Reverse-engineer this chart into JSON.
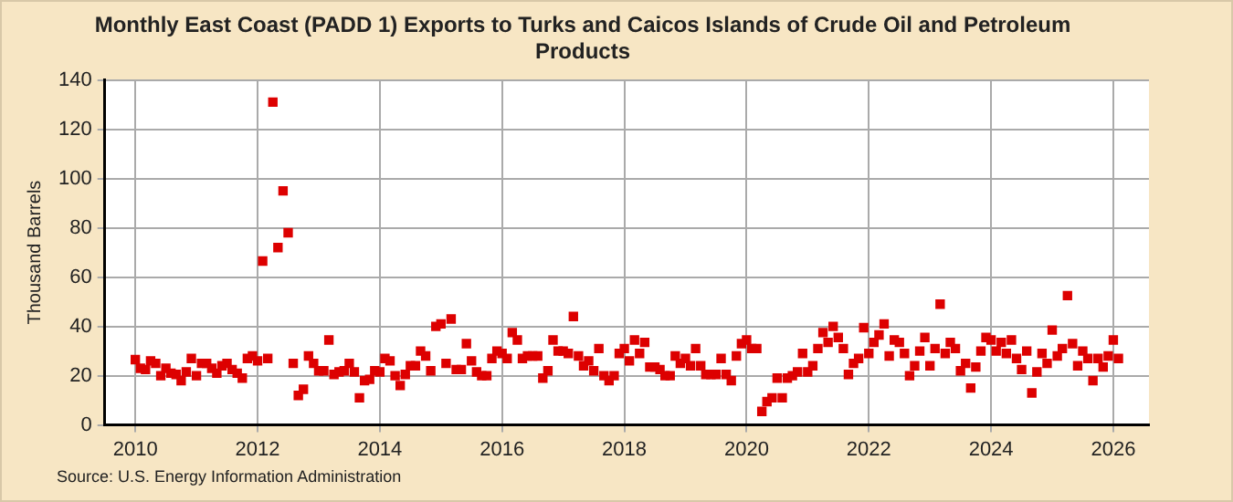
{
  "chart_data": {
    "type": "scatter",
    "title": "Monthly East Coast (PADD 1) Exports to Turks and Caicos Islands of Crude Oil and Petroleum Products",
    "ylabel": "Thousand Barrels",
    "annotations": [
      "Source: U.S. Energy Information Administration"
    ],
    "x": [
      "2010-01",
      "2010-02",
      "2010-03",
      "2010-04",
      "2010-05",
      "2010-06",
      "2010-07",
      "2010-08",
      "2010-09",
      "2010-10",
      "2010-11",
      "2010-12",
      "2011-01",
      "2011-02",
      "2011-03",
      "2011-04",
      "2011-05",
      "2011-06",
      "2011-07",
      "2011-08",
      "2011-09",
      "2011-10",
      "2011-11",
      "2011-12",
      "2012-01",
      "2012-02",
      "2012-03",
      "2012-04",
      "2012-05",
      "2012-06",
      "2012-07",
      "2012-08",
      "2012-09",
      "2012-10",
      "2012-11",
      "2012-12",
      "2013-01",
      "2013-02",
      "2013-03",
      "2013-04",
      "2013-05",
      "2013-06",
      "2013-07",
      "2013-08",
      "2013-09",
      "2013-10",
      "2013-11",
      "2013-12",
      "2014-01",
      "2014-02",
      "2014-03",
      "2014-04",
      "2014-05",
      "2014-06",
      "2014-07",
      "2014-08",
      "2014-09",
      "2014-10",
      "2014-11",
      "2014-12",
      "2015-01",
      "2015-02",
      "2015-03",
      "2015-04",
      "2015-05",
      "2015-06",
      "2015-07",
      "2015-08",
      "2015-09",
      "2015-10",
      "2015-11",
      "2015-12",
      "2016-01",
      "2016-02",
      "2016-03",
      "2016-04",
      "2016-05",
      "2016-06",
      "2016-07",
      "2016-08",
      "2016-09",
      "2016-10",
      "2016-11",
      "2016-12",
      "2017-01",
      "2017-02",
      "2017-03",
      "2017-04",
      "2017-05",
      "2017-06",
      "2017-07",
      "2017-08",
      "2017-09",
      "2017-10",
      "2017-11",
      "2017-12",
      "2018-01",
      "2018-02",
      "2018-03",
      "2018-04",
      "2018-05",
      "2018-06",
      "2018-07",
      "2018-08",
      "2018-09",
      "2018-10",
      "2018-11",
      "2018-12",
      "2019-01",
      "2019-02",
      "2019-03",
      "2019-04",
      "2019-05",
      "2019-06",
      "2019-07",
      "2019-08",
      "2019-09",
      "2019-10",
      "2019-11",
      "2019-12",
      "2020-01",
      "2020-02",
      "2020-03",
      "2020-04",
      "2020-05",
      "2020-06",
      "2020-07",
      "2020-08",
      "2020-09",
      "2020-10",
      "2020-11",
      "2020-12",
      "2021-01",
      "2021-02",
      "2021-03",
      "2021-04",
      "2021-05",
      "2021-06",
      "2021-07",
      "2021-08",
      "2021-09",
      "2021-10",
      "2021-11",
      "2021-12",
      "2022-01",
      "2022-02",
      "2022-03",
      "2022-04",
      "2022-05",
      "2022-06",
      "2022-07",
      "2022-08",
      "2022-09",
      "2022-10",
      "2022-11",
      "2022-12",
      "2023-01",
      "2023-02",
      "2023-03",
      "2023-04",
      "2023-05",
      "2023-06",
      "2023-07",
      "2023-08",
      "2023-09",
      "2023-10",
      "2023-11",
      "2023-12",
      "2024-01",
      "2024-02",
      "2024-03",
      "2024-04",
      "2024-05",
      "2024-06",
      "2024-07",
      "2024-08",
      "2024-09",
      "2024-10",
      "2024-11",
      "2024-12",
      "2025-01",
      "2025-02",
      "2025-03",
      "2025-04",
      "2025-05",
      "2025-06",
      "2025-07",
      "2025-08",
      "2025-09",
      "2025-10",
      "2025-11",
      "2025-12",
      "2026-01",
      "2026-02"
    ],
    "series": [
      {
        "color": "#dd0000",
        "values": [
          26.5,
          23,
          22.5,
          26,
          25,
          20,
          23,
          21,
          20.5,
          18,
          21.5,
          27,
          20,
          25,
          25,
          23,
          21,
          24,
          25,
          22.5,
          21,
          19,
          27,
          28,
          26,
          66.5,
          27,
          131,
          72,
          95,
          78,
          25,
          12,
          14.5,
          28,
          25,
          22,
          22,
          34.5,
          20.5,
          21.5,
          22,
          25,
          21.5,
          11,
          18,
          18.5,
          22,
          21.5,
          27,
          26,
          20,
          16,
          20.5,
          24,
          24,
          30,
          28,
          22,
          40,
          41,
          25,
          43,
          22.5,
          22.5,
          33,
          26,
          21.5,
          20,
          20,
          27,
          30,
          29,
          27,
          37.5,
          34.5,
          27,
          28,
          28,
          28,
          19,
          22,
          34.5,
          30,
          30,
          29,
          44,
          28,
          24,
          26,
          22,
          31,
          20,
          18,
          20,
          29,
          31,
          26,
          34.5,
          29,
          33.5,
          23.5,
          23.5,
          22.5,
          20,
          20,
          28,
          25,
          27,
          24,
          31,
          24,
          20.5,
          20.5,
          20.5,
          27,
          20.5,
          18,
          28,
          33,
          34.5,
          31,
          31,
          5.5,
          9.5,
          11,
          19,
          11,
          19,
          20,
          21.5,
          29,
          21.5,
          24,
          31,
          37.5,
          33.5,
          40,
          35.5,
          31,
          20.5,
          25,
          27,
          39.5,
          29,
          33.5,
          36.5,
          41,
          28,
          34.5,
          33.5,
          29,
          20,
          24,
          30,
          35.5,
          24,
          31,
          49,
          29,
          33.5,
          31,
          22,
          25,
          15,
          23.5,
          30,
          35.5,
          34.5,
          30,
          33.5,
          29,
          34.5,
          27,
          22.5,
          30,
          13,
          21.5,
          29,
          25,
          38.5,
          28,
          31,
          52.5,
          33,
          24,
          30,
          27,
          18,
          27,
          23.5,
          28,
          34.5,
          27
        ]
      }
    ],
    "xlim": [
      "2009-07",
      "2026-08"
    ],
    "xticks": [
      "2010",
      "2012",
      "2014",
      "2016",
      "2018",
      "2020",
      "2022",
      "2024",
      "2026"
    ],
    "ylim": [
      0,
      140
    ],
    "yticks": [
      0,
      20,
      40,
      60,
      80,
      100,
      120,
      140
    ],
    "grid": true,
    "legend": false,
    "marker": "square"
  }
}
